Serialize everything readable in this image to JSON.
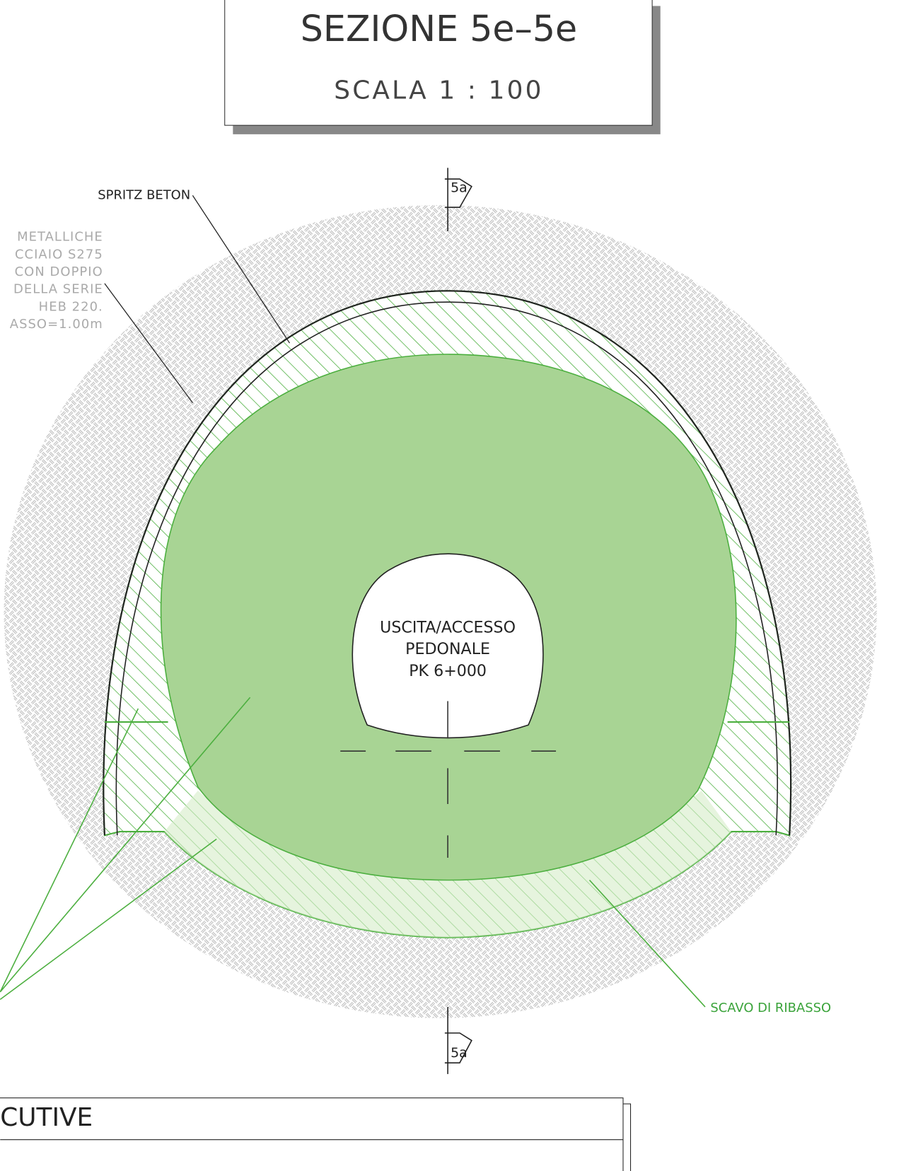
{
  "header": {
    "title": "SEZIONE 5e–5e",
    "scale": "SCALA 1 : 100"
  },
  "labels": {
    "spritz": "SPRITZ BETON",
    "ribasso": "SCAVO DI RIBASSO",
    "section_top": "5a",
    "section_bottom": "5a"
  },
  "note_left": [
    "METALLICHE",
    "CCIAIO S275",
    "CON DOPPIO",
    "DELLA SERIE",
    "HEB 220.",
    "ASSO=1.00m"
  ],
  "opening": [
    "USCITA/ACCESSO",
    "PEDONALE",
    "PK 6+000"
  ],
  "footer": {
    "title": "CUTIVE"
  }
}
